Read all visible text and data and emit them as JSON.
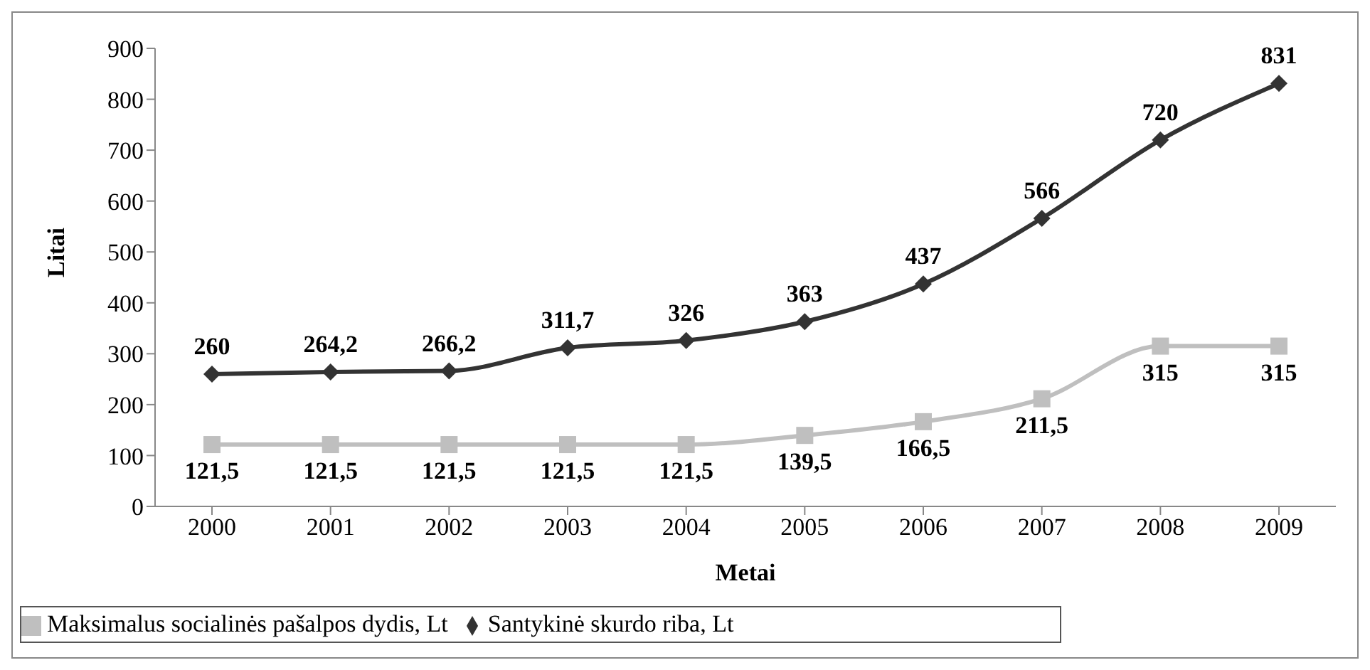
{
  "chart_data": {
    "type": "line",
    "xlabel": "Metai",
    "ylabel": "Litai",
    "categories": [
      "2000",
      "2001",
      "2002",
      "2003",
      "2004",
      "2005",
      "2006",
      "2007",
      "2008",
      "2009"
    ],
    "series": [
      {
        "name": "Santykinė skurdo riba, Lt",
        "color": "#333333",
        "marker": "diamond",
        "values": [
          260,
          264.2,
          266.2,
          311.7,
          326,
          363,
          437,
          566,
          720,
          831
        ],
        "value_labels": [
          "260",
          "264,2",
          "266,2",
          "311,7",
          "326",
          "363",
          "437",
          "566",
          "720",
          "831"
        ]
      },
      {
        "name": "Maksimalus socialinės pašalpos dydis, Lt",
        "color": "#bfbfbf",
        "marker": "square",
        "values": [
          121.5,
          121.5,
          121.5,
          121.5,
          121.5,
          139.5,
          166.5,
          211.5,
          315,
          315
        ],
        "value_labels": [
          "121,5",
          "121,5",
          "121,5",
          "121,5",
          "121,5",
          "139,5",
          "166,5",
          "211,5",
          "315",
          "315"
        ]
      }
    ],
    "ylim": [
      0,
      900
    ],
    "yticks": [
      0,
      100,
      200,
      300,
      400,
      500,
      600,
      700,
      800,
      900
    ],
    "grid": false,
    "legend": "bottom"
  }
}
